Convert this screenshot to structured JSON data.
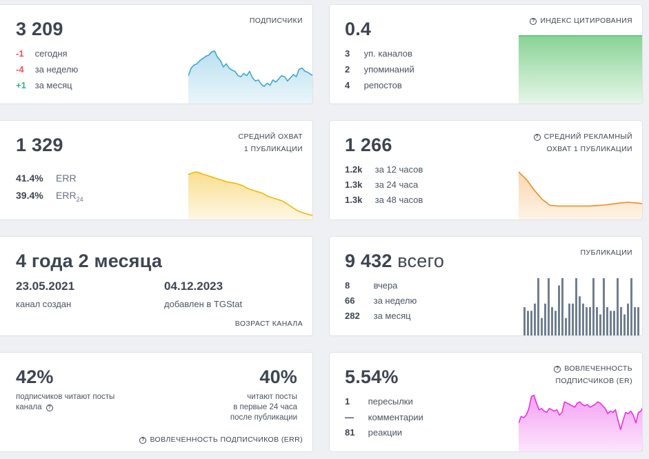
{
  "subscribers": {
    "value": "3 209",
    "label": "ПОДПИСЧИКИ",
    "rows": [
      {
        "delta": "-1",
        "text": "сегодня",
        "tone": "red"
      },
      {
        "delta": "-4",
        "text": "за неделю",
        "tone": "red"
      },
      {
        "delta": "+1",
        "text": "за месяц",
        "tone": "green"
      }
    ],
    "chart_data": {
      "type": "area",
      "values": [
        48,
        62,
        68,
        70,
        76,
        80,
        84,
        86,
        92,
        94,
        82,
        76,
        64,
        70,
        62,
        58,
        56,
        48,
        46,
        52,
        48,
        56,
        44,
        38,
        40,
        32,
        28,
        34,
        30,
        40,
        36,
        42,
        48,
        46,
        38,
        44,
        50,
        46,
        60,
        62,
        56,
        54,
        50,
        48
      ],
      "color": "#3aa7d4"
    }
  },
  "citation": {
    "value": "0.4",
    "label": "ИНДЕКС ЦИТИРОВАНИЯ",
    "rows": [
      {
        "num": "3",
        "text": "уп. каналов"
      },
      {
        "num": "2",
        "text": "упоминаний"
      },
      {
        "num": "4",
        "text": "репостов"
      }
    ],
    "chart_data": {
      "type": "area",
      "values": [
        0.4,
        0.4
      ],
      "color": "#5fc46f"
    }
  },
  "reach": {
    "value": "1 329",
    "label_line1": "СРЕДНИЙ ОХВАТ",
    "label_line2": "1 ПУБЛИКАЦИИ",
    "rows": [
      {
        "num": "41.4%",
        "text": "ERR",
        "sub": ""
      },
      {
        "num": "39.4%",
        "text": "ERR",
        "sub": "24"
      }
    ],
    "chart_data": {
      "type": "area",
      "values": [
        68,
        70,
        72,
        70,
        68,
        66,
        64,
        62,
        60,
        58,
        56,
        55,
        54,
        52,
        50,
        46,
        44,
        42,
        40,
        38,
        34,
        32,
        30,
        28,
        26,
        22,
        18,
        14,
        10,
        8,
        6,
        4,
        3
      ],
      "color": "#f2b705"
    }
  },
  "ad_reach": {
    "value": "1 266",
    "label_line1": "СРЕДНИЙ РЕКЛАМНЫЙ",
    "label_line2": "ОХВАТ 1 ПУБЛИКАЦИИ",
    "rows": [
      {
        "num": "1.2k",
        "text": "за 12 часов"
      },
      {
        "num": "1.3k",
        "text": "за 24 часа"
      },
      {
        "num": "1.3k",
        "text": "за 48 часов"
      }
    ],
    "chart_data": {
      "type": "area",
      "values": [
        1300,
        1250,
        1180,
        1120,
        1080,
        1075,
        1075,
        1075,
        1075,
        1075,
        1078,
        1082,
        1088,
        1095,
        1100,
        1096,
        1090
      ],
      "color": "#f08c1a"
    }
  },
  "age": {
    "value": "4 года 2 месяца",
    "created_date": "23.05.2021",
    "created_label": "канал создан",
    "added_date": "04.12.2023",
    "added_label": "добавлен в TGStat",
    "footer": "ВОЗРАСТ КАНАЛА"
  },
  "posts": {
    "value": "9 432",
    "suffix": "всего",
    "label": "ПУБЛИКАЦИИ",
    "rows": [
      {
        "num": "8",
        "text": "вчера"
      },
      {
        "num": "66",
        "text": "за неделю"
      },
      {
        "num": "282",
        "text": "за месяц"
      }
    ],
    "chart_data": {
      "type": "bar",
      "values": [
        8,
        7,
        7,
        9,
        16,
        5,
        9,
        16,
        8,
        7,
        14,
        16,
        5,
        9,
        9,
        16,
        11,
        9,
        8,
        8,
        16,
        8,
        6,
        16,
        8,
        7,
        7,
        16,
        8,
        6,
        9,
        16,
        8,
        8
      ],
      "color": "#6f7f90"
    }
  },
  "engagement_err": {
    "left_value": "42%",
    "left_caption_1": "подписчиков читают посты",
    "left_caption_2": "канала",
    "right_value": "40%",
    "right_caption_1": "читают посты",
    "right_caption_2": "в первые 24 часа",
    "right_caption_3": "после публикации",
    "footer": "ВОВЛЕЧЕННОСТЬ ПОДПИСЧИКОВ (ERR)"
  },
  "engagement_er": {
    "value": "5.54%",
    "label_line1": "ВОВЛЕЧЕННОСТЬ",
    "label_line2": "ПОДПИСЧИКОВ (ER)",
    "rows": [
      {
        "num": "1",
        "text": "пересылки"
      },
      {
        "num": "—",
        "text": "комментарии"
      },
      {
        "num": "81",
        "text": "реакции"
      }
    ],
    "chart_data": {
      "type": "area",
      "values": [
        40,
        50,
        48,
        52,
        62,
        80,
        82,
        70,
        60,
        62,
        58,
        56,
        62,
        60,
        58,
        60,
        52,
        56,
        72,
        70,
        68,
        66,
        64,
        70,
        72,
        68,
        66,
        68,
        64,
        66,
        68,
        72,
        70,
        66,
        62,
        54,
        58,
        56,
        60,
        44,
        30,
        44,
        56,
        54,
        58,
        52,
        40,
        56,
        58,
        66
      ],
      "color": "#e62fe6"
    }
  }
}
